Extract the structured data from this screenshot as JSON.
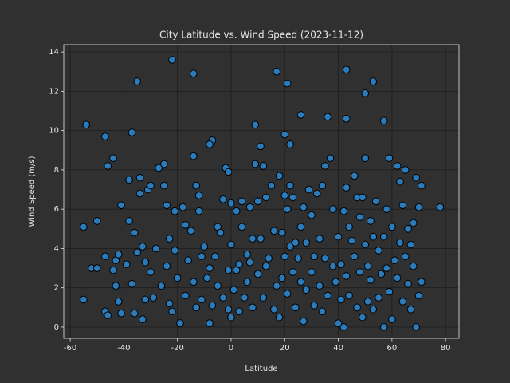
{
  "chart_data": {
    "type": "scatter",
    "title": "City Latitude vs. Wind Speed (2023-11-12)",
    "xlabel": "Latitude",
    "ylabel": "Wind Speed (m/s)",
    "color": "#2b7bba",
    "edgecolor": "#000000",
    "grid": true,
    "xlim": [
      -62.4,
      85
    ],
    "ylim": [
      -0.57,
      14.37
    ],
    "xticks": [
      -60,
      -40,
      -20,
      0,
      20,
      40,
      60,
      80
    ],
    "yticks": [
      0,
      2,
      4,
      6,
      8,
      10,
      12,
      14
    ],
    "x": [
      -54,
      -47,
      -46,
      -44,
      -41,
      -37,
      -35,
      -22,
      -14,
      -7,
      -8,
      9,
      11,
      17,
      21,
      20,
      22,
      26,
      36,
      43,
      43,
      50,
      53,
      57,
      -55,
      -55,
      -52,
      -50,
      -50,
      -47,
      -47,
      -46,
      -44,
      -43,
      -43,
      -42,
      -42,
      -41,
      -39,
      -38,
      -38,
      -37,
      -36,
      -36,
      -35,
      -34,
      -34,
      -33,
      -33,
      -32,
      -32,
      -31,
      -30,
      -30,
      -29,
      -28,
      -27,
      -26,
      -25,
      -25,
      -24,
      -24,
      -23,
      -23,
      -22,
      -21,
      -21,
      -20,
      -19,
      -18,
      -17,
      -17,
      -16,
      -15,
      -14,
      -14,
      -13,
      -13,
      -12,
      -12,
      -11,
      -11,
      -10,
      -9,
      -8,
      -8,
      -7,
      -6,
      -5,
      -5,
      -4,
      -3,
      -3,
      -2,
      -1,
      -1,
      -1,
      0,
      0,
      0,
      1,
      2,
      2,
      3,
      3,
      4,
      4,
      5,
      6,
      6,
      7,
      7,
      8,
      8,
      9,
      10,
      10,
      11,
      12,
      12,
      13,
      13,
      14,
      15,
      16,
      16,
      17,
      18,
      18,
      19,
      19,
      20,
      20,
      21,
      21,
      22,
      22,
      23,
      23,
      24,
      24,
      25,
      26,
      26,
      27,
      27,
      28,
      28,
      29,
      30,
      30,
      31,
      31,
      32,
      33,
      33,
      34,
      34,
      35,
      35,
      36,
      37,
      38,
      38,
      39,
      40,
      40,
      41,
      41,
      42,
      42,
      43,
      43,
      44,
      44,
      45,
      46,
      46,
      47,
      47,
      48,
      48,
      49,
      49,
      50,
      50,
      51,
      51,
      52,
      52,
      53,
      53,
      54,
      55,
      55,
      56,
      57,
      57,
      58,
      58,
      59,
      59,
      60,
      60,
      61,
      62,
      62,
      63,
      63,
      64,
      64,
      65,
      65,
      66,
      66,
      67,
      67,
      68,
      68,
      69,
      69,
      70,
      70,
      71,
      71,
      78
    ],
    "values": [
      10.3,
      9.7,
      8.2,
      8.6,
      6.2,
      9.9,
      12.5,
      13.6,
      12.9,
      9.5,
      9.3,
      10.3,
      9.2,
      13.0,
      12.4,
      9.8,
      9.3,
      10.8,
      10.7,
      13.1,
      10.6,
      11.9,
      12.5,
      10.5,
      5.1,
      1.4,
      3.0,
      5.4,
      3.0,
      3.6,
      0.8,
      0.6,
      2.9,
      3.4,
      2.1,
      3.7,
      1.3,
      0.7,
      3.2,
      5.4,
      7.5,
      2.2,
      4.8,
      0.7,
      3.8,
      7.6,
      6.8,
      4.1,
      0.4,
      3.3,
      1.4,
      7.0,
      7.2,
      2.8,
      1.5,
      4.0,
      8.1,
      2.1,
      8.3,
      7.2,
      6.2,
      3.1,
      4.5,
      1.2,
      0.8,
      5.9,
      3.9,
      2.5,
      0.2,
      6.1,
      5.2,
      1.6,
      3.4,
      4.9,
      8.7,
      2.3,
      7.2,
      1.0,
      5.9,
      6.7,
      3.6,
      1.4,
      4.1,
      2.5,
      0.2,
      3.0,
      1.1,
      3.6,
      5.1,
      2.1,
      4.8,
      6.5,
      1.5,
      8.1,
      7.9,
      2.9,
      0.9,
      6.3,
      4.2,
      0.5,
      1.9,
      5.9,
      2.9,
      3.2,
      0.8,
      6.4,
      5.1,
      1.5,
      2.3,
      3.7,
      6.1,
      3.3,
      4.5,
      1.0,
      8.3,
      6.4,
      2.7,
      4.5,
      8.2,
      1.5,
      6.6,
      3.1,
      3.5,
      7.2,
      4.9,
      0.9,
      2.1,
      7.7,
      0.5,
      4.8,
      2.5,
      6.7,
      3.6,
      6.0,
      1.7,
      7.2,
      4.1,
      6.6,
      2.8,
      4.3,
      1.0,
      3.5,
      5.1,
      2.3,
      6.1,
      0.3,
      4.3,
      1.9,
      7.0,
      5.7,
      2.8,
      3.6,
      1.1,
      6.8,
      4.5,
      2.1,
      7.2,
      0.8,
      8.2,
      3.5,
      1.6,
      8.6,
      6.0,
      3.1,
      2.3,
      4.6,
      0.2,
      3.2,
      1.4,
      5.9,
      0.0,
      7.1,
      2.6,
      5.1,
      1.6,
      4.4,
      7.7,
      3.6,
      6.6,
      1.0,
      5.6,
      2.8,
      6.6,
      0.5,
      8.6,
      4.2,
      3.1,
      1.3,
      5.4,
      2.4,
      4.6,
      0.9,
      6.4,
      3.9,
      1.5,
      2.7,
      4.6,
      0.0,
      6.0,
      3.0,
      8.6,
      1.8,
      5.1,
      0.4,
      3.4,
      8.2,
      2.5,
      4.3,
      7.4,
      6.2,
      1.3,
      3.6,
      8.0,
      5.0,
      2.2,
      4.2,
      0.9,
      5.3,
      3.1,
      7.6,
      0.0,
      6.1,
      1.6,
      7.2,
      2.3,
      6.1
    ]
  }
}
